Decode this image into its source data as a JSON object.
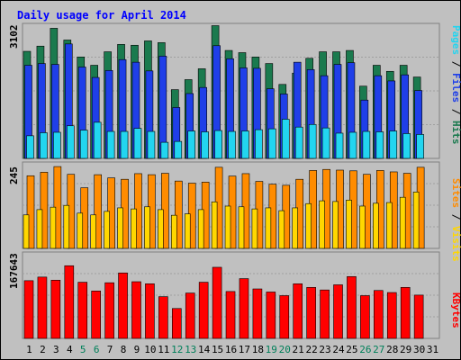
{
  "chart_data": {
    "type": "bar",
    "title": "Daily usage for April 2014",
    "categories": [
      "1",
      "2",
      "3",
      "4",
      "5",
      "6",
      "7",
      "8",
      "9",
      "10",
      "11",
      "12",
      "13",
      "14",
      "15",
      "16",
      "17",
      "18",
      "19",
      "20",
      "21",
      "22",
      "23",
      "24",
      "25",
      "26",
      "27",
      "28",
      "29",
      "30",
      "31"
    ],
    "weekend_days": [
      5,
      6,
      12,
      13,
      19,
      20,
      26,
      27
    ],
    "panels": {
      "top": {
        "ymax": 3102,
        "ymax_label": "3102",
        "series": [
          {
            "name": "Hits",
            "color": "#1a7a4e",
            "values": [
              2460,
              2580,
              2990,
              2720,
              2330,
              2140,
              2450,
              2620,
              2600,
              2700,
              2660,
              1580,
              1810,
              2060,
              3050,
              2480,
              2430,
              2330,
              2180,
              1700,
              1960,
              2300,
              2450,
              2450,
              2480,
              1660,
              2140,
              2000,
              2140,
              1870,
              0
            ]
          },
          {
            "name": "Files",
            "color": "#1f3fe8",
            "values": [
              2140,
              2180,
              2160,
              2630,
              2100,
              1860,
              2020,
              2270,
              2210,
              2010,
              2350,
              1170,
              1490,
              1630,
              2590,
              2290,
              2080,
              2070,
              1600,
              1480,
              2210,
              2040,
              1900,
              2160,
              2200,
              1340,
              1900,
              1780,
              1920,
              1560,
              0
            ]
          },
          {
            "name": "Pages",
            "color": "#22d5f0",
            "values": [
              520,
              590,
              600,
              750,
              650,
              830,
              620,
              620,
              690,
              620,
              370,
              390,
              630,
              610,
              640,
              620,
              630,
              660,
              680,
              900,
              720,
              780,
              700,
              580,
              600,
              620,
              610,
              630,
              570,
              550,
              0
            ]
          }
        ]
      },
      "middle": {
        "ymax": 245,
        "ymax_label": "245",
        "series": [
          {
            "name": "Visits",
            "color": "#ff8c00",
            "values": [
              206,
              216,
              232,
              210,
              172,
              209,
              200,
              196,
              212,
              209,
              213,
              191,
              185,
              188,
              230,
              205,
              212,
              190,
              182,
              179,
              196,
              221,
              224,
              222,
              220,
              210,
              221,
              217,
              213,
              230,
              0
            ]
          },
          {
            "name": "Sites",
            "color": "#ffd700",
            "values": [
              95,
              110,
              117,
              122,
              100,
              95,
              105,
              115,
              112,
              118,
              110,
              94,
              98,
              110,
              132,
              120,
              118,
              112,
              115,
              107,
              115,
              127,
              135,
              133,
              137,
              120,
              128,
              130,
              145,
              160,
              0
            ]
          }
        ]
      },
      "bottom": {
        "ymax": 167643,
        "ymax_label": "167643",
        "series": [
          {
            "name": "KBytes",
            "color": "#ff0000",
            "values": [
              112000,
              119000,
              113000,
              141000,
              109000,
              92000,
              108000,
              127000,
              110000,
              106000,
              81000,
              58000,
              88000,
              109000,
              138000,
              91000,
              116000,
              96000,
              90000,
              83000,
              106000,
              99000,
              94000,
              104000,
              120000,
              83000,
              93000,
              89000,
              99000,
              84000,
              0
            ]
          }
        ]
      }
    }
  }
}
